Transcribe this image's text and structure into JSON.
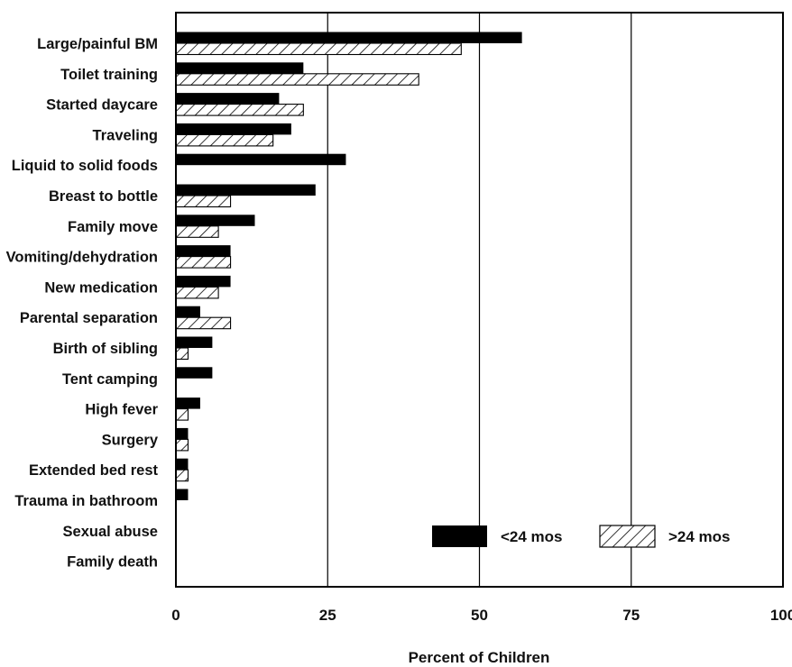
{
  "chart_data": {
    "type": "bar",
    "orientation": "horizontal",
    "categories": [
      "Large/painful BM",
      "Toilet training",
      "Started daycare",
      "Traveling",
      "Liquid to solid foods",
      "Breast to bottle",
      "Family move",
      "Vomiting/dehydration",
      "New medication",
      "Parental separation",
      "Birth of sibling",
      "Tent camping",
      "High fever",
      "Surgery",
      "Extended bed rest",
      "Trauma in bathroom",
      "Sexual abuse",
      "Family death"
    ],
    "series": [
      {
        "name": "<24 mos",
        "pattern": "solid",
        "color": "#000000",
        "values": [
          57,
          21,
          17,
          19,
          28,
          23,
          13,
          9,
          9,
          4,
          6,
          6,
          4,
          2,
          2,
          2,
          0,
          0
        ]
      },
      {
        "name": ">24 mos",
        "pattern": "hatched",
        "color": "#000000",
        "values": [
          47,
          40,
          21,
          16,
          0,
          9,
          7,
          9,
          7,
          9,
          2,
          0,
          2,
          2,
          2,
          0,
          0,
          0
        ]
      }
    ],
    "xlabel": "Percent of Children",
    "ylabel": "",
    "title": "",
    "xlim": [
      0,
      100
    ],
    "xticks": [
      0,
      25,
      50,
      75,
      100
    ],
    "grid": "vertical lines at 25, 50, 75",
    "legend_position": "bottom-right inside plot"
  }
}
